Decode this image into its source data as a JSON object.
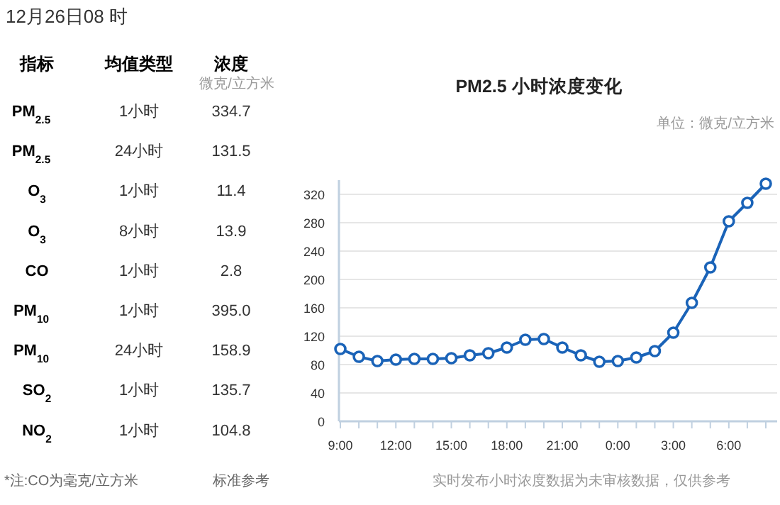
{
  "chart_data": [
    {
      "type": "other",
      "title": "12月26日08 时",
      "annotations": [
        "指标",
        "均值类型",
        "浓度",
        "微克/立方米",
        "*注:CO为毫克/立方米",
        "标准参考"
      ],
      "categories": [
        "PM$_{2.5}$",
        "PM$_{2.5}$",
        "O$_{3}$",
        "O$_{3}$",
        "CO",
        "PM$_{10}$",
        "PM$_{10}$",
        "SO$_{2}$",
        "NO$_{2}$"
      ],
      "cell_labels": [
        [
          "1小时",
          "334.7"
        ],
        [
          "24小时",
          "131.5"
        ],
        [
          "1小时",
          "11.4"
        ],
        [
          "8小时",
          "13.9"
        ],
        [
          "1小时",
          "2.8"
        ],
        [
          "1小时",
          "395.0"
        ],
        [
          "24小时",
          "158.9"
        ],
        [
          "1小时",
          "135.7"
        ],
        [
          "1小时",
          "104.8"
        ]
      ]
    },
    {
      "type": "line",
      "title": "PM2.5 小时浓度变化",
      "subtitle": "单位：微克/立方米",
      "annotations": [
        "实时发布小时浓度数据为未审核数据，仅供参考"
      ],
      "categories": [
        "9:00",
        null,
        null,
        "12:00",
        null,
        null,
        "15:00",
        null,
        null,
        "18:00",
        null,
        null,
        "21:00",
        null,
        null,
        "0:00",
        null,
        null,
        "3:00",
        null,
        null,
        "6:00",
        null,
        null
      ],
      "series": [
        {
          "color": "#1a63b8",
          "values": [
            102,
            91,
            85,
            87,
            88,
            88,
            89,
            93,
            96,
            104,
            115,
            116,
            104,
            93,
            84,
            85,
            90,
            99,
            125,
            167,
            217,
            282,
            308,
            335
          ]
        }
      ],
      "ylim": [
        0,
        340
      ],
      "yticks": [
        0,
        40,
        80,
        120,
        160,
        200,
        240,
        280,
        320
      ],
      "grid": "y",
      "marker": "circle",
      "line_style": "solid"
    }
  ]
}
